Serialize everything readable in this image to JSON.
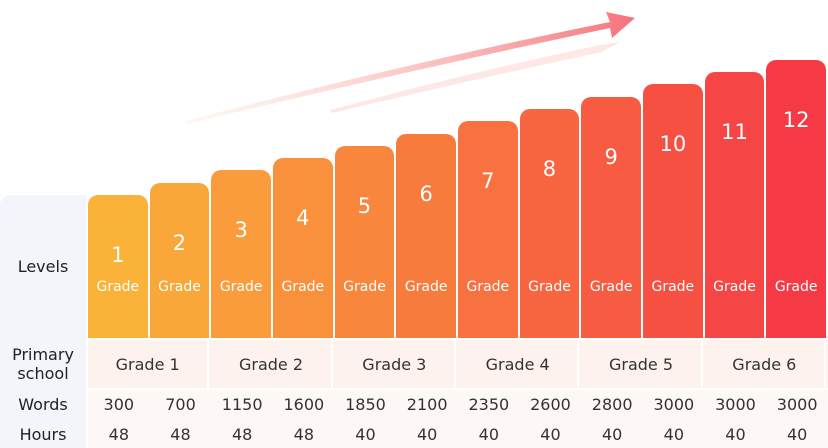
{
  "levels": {
    "label": "Levels",
    "items": [
      {
        "number": 1,
        "unit": "Grade"
      },
      {
        "number": 2,
        "unit": "Grade"
      },
      {
        "number": 3,
        "unit": "Grade"
      },
      {
        "number": 4,
        "unit": "Grade"
      },
      {
        "number": 5,
        "unit": "Grade"
      },
      {
        "number": 6,
        "unit": "Grade"
      },
      {
        "number": 7,
        "unit": "Grade"
      },
      {
        "number": 8,
        "unit": "Grade"
      },
      {
        "number": 9,
        "unit": "Grade"
      },
      {
        "number": 10,
        "unit": "Grade"
      },
      {
        "number": 11,
        "unit": "Grade"
      },
      {
        "number": 12,
        "unit": "Grade"
      }
    ]
  },
  "primary_school": {
    "label": "Primary school",
    "grades": [
      "Grade 1",
      "Grade 2",
      "Grade 3",
      "Grade 4",
      "Grade 5",
      "Grade 6"
    ]
  },
  "words": {
    "label": "Words",
    "values": [
      300,
      700,
      1150,
      1600,
      1850,
      2100,
      2350,
      2600,
      2800,
      3000,
      3000,
      3000
    ]
  },
  "hours": {
    "label": "Hours",
    "values": [
      48,
      48,
      48,
      48,
      40,
      40,
      40,
      40,
      40,
      40,
      40,
      40
    ]
  }
}
